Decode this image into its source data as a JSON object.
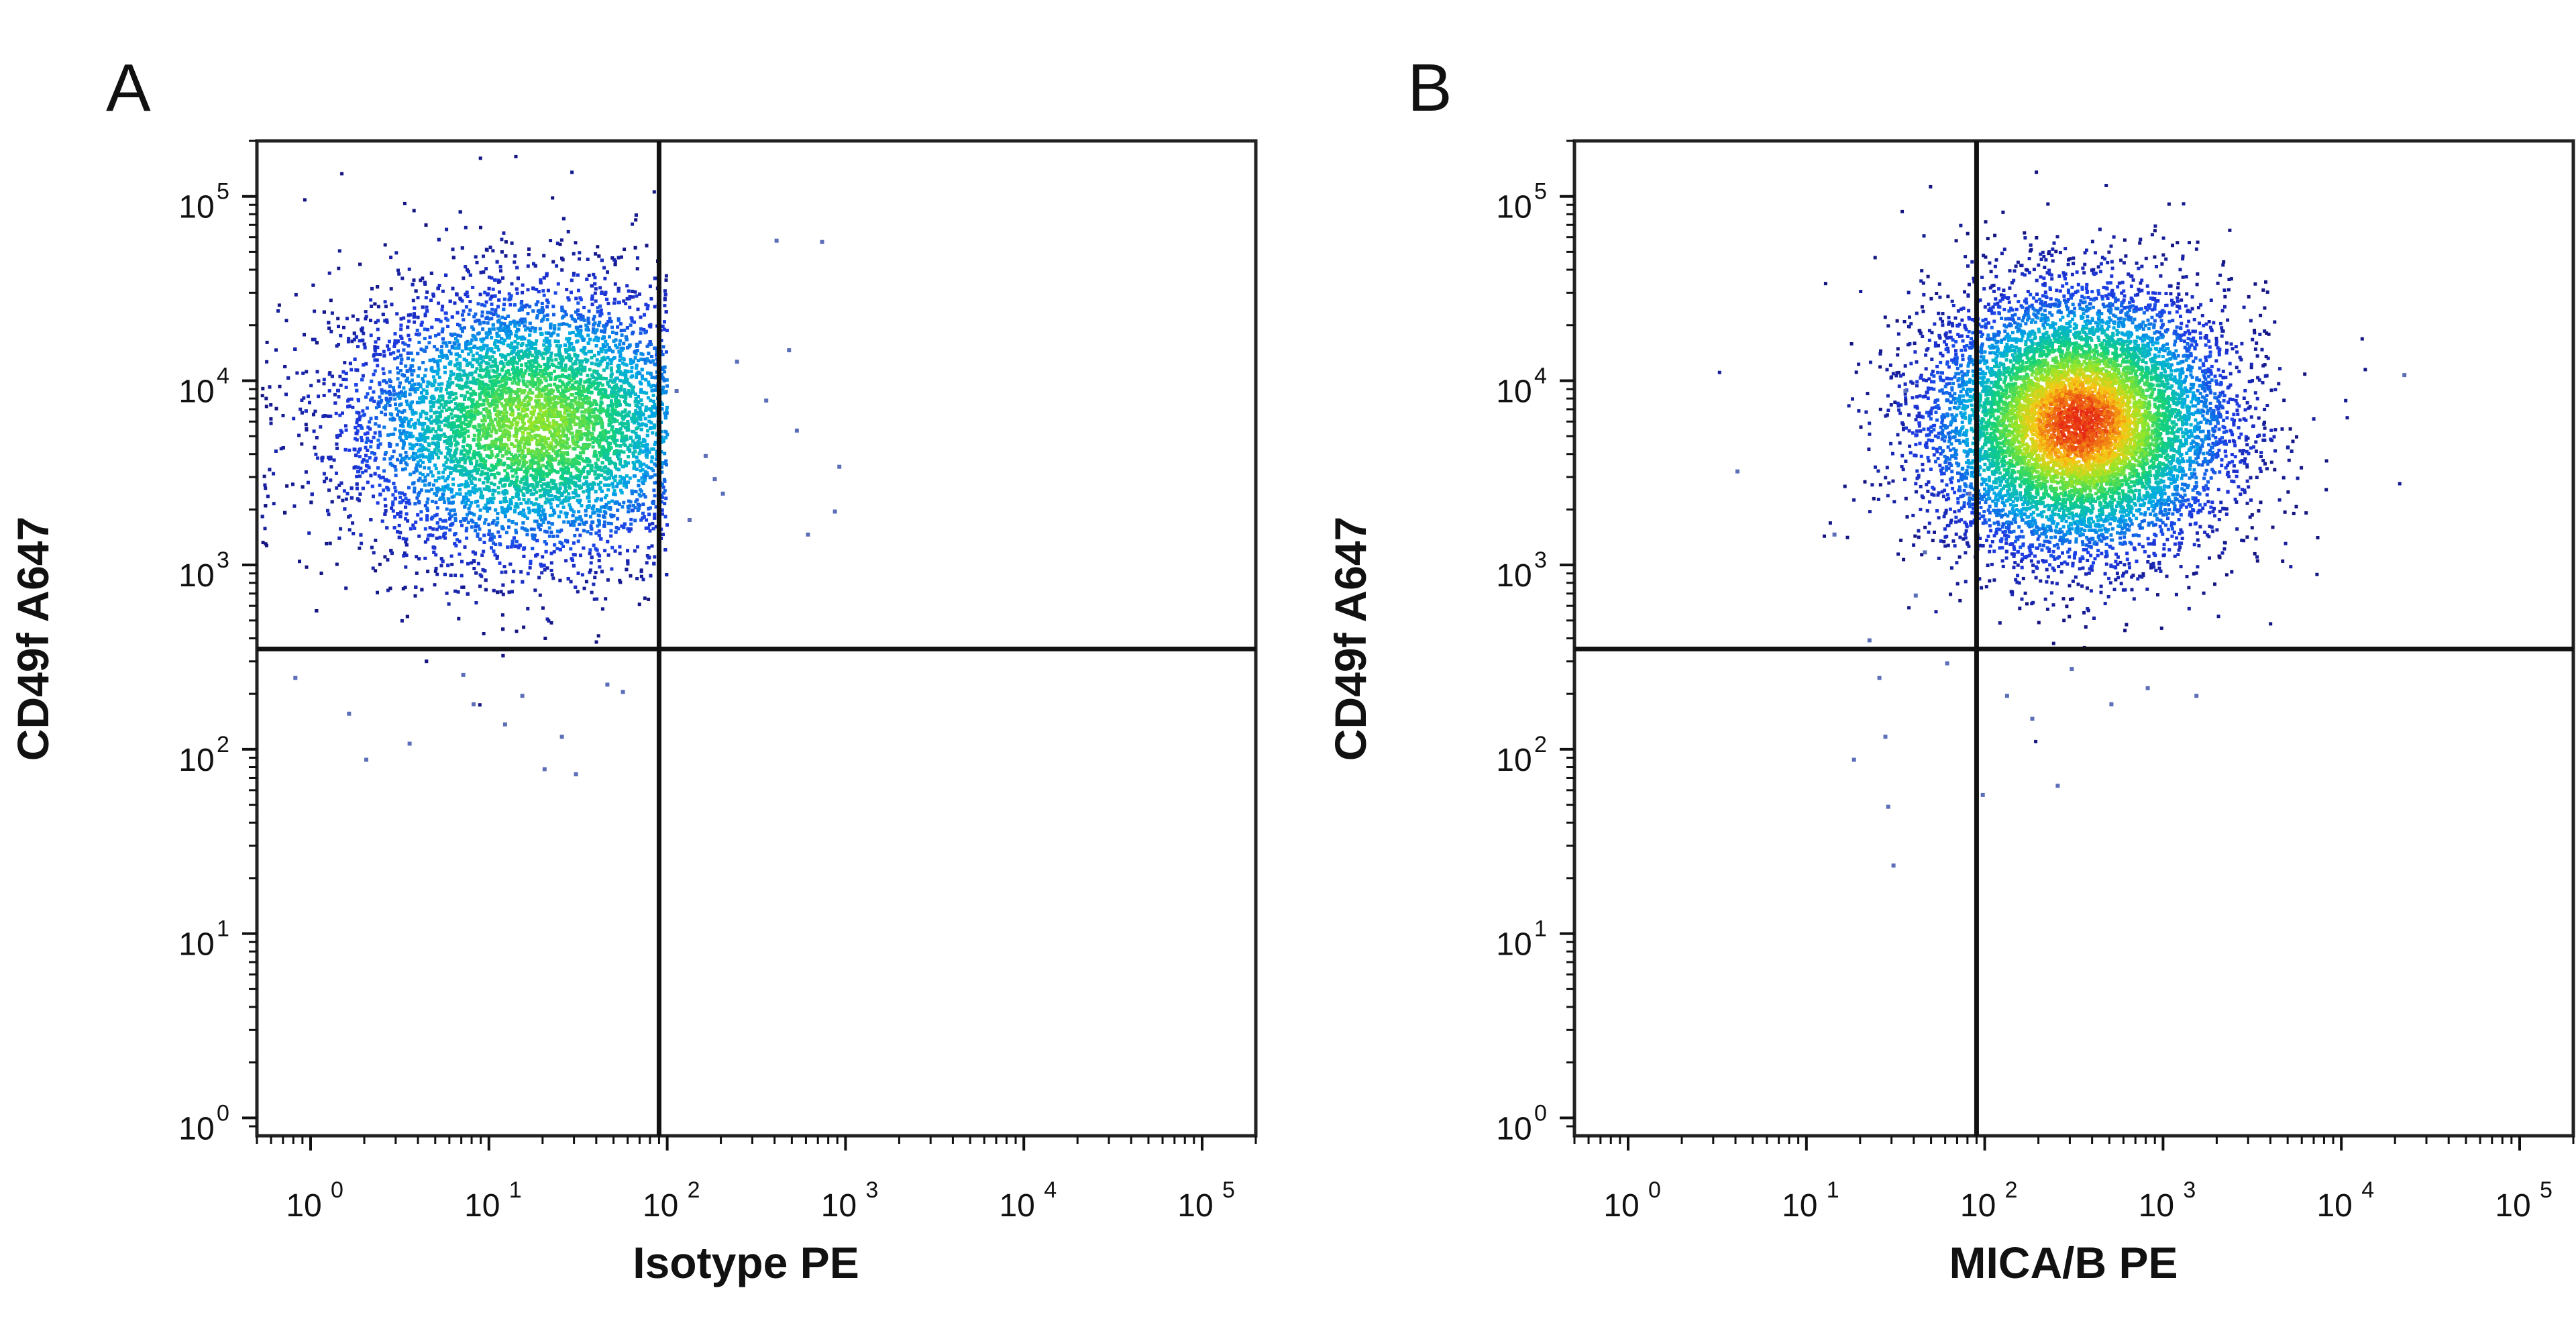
{
  "chart_data": [
    {
      "type": "scatter",
      "panel_label": "A",
      "xlabel": "Isotype PE",
      "ylabel": "CD49f A647",
      "x_scale": "log",
      "y_scale": "log",
      "xlim": [
        0.5,
        200000
      ],
      "ylim": [
        0.8,
        200000
      ],
      "x_ticks": [
        {
          "base": "10",
          "exp": "0"
        },
        {
          "base": "10",
          "exp": "1"
        },
        {
          "base": "10",
          "exp": "2"
        },
        {
          "base": "10",
          "exp": "3"
        },
        {
          "base": "10",
          "exp": "4"
        },
        {
          "base": "10",
          "exp": "5"
        }
      ],
      "y_ticks": [
        {
          "base": "10",
          "exp": "0"
        },
        {
          "base": "10",
          "exp": "1"
        },
        {
          "base": "10",
          "exp": "2"
        },
        {
          "base": "10",
          "exp": "3"
        },
        {
          "base": "10",
          "exp": "4"
        },
        {
          "base": "10",
          "exp": "5"
        }
      ],
      "quadrant_gate": {
        "x": 90,
        "y": 350
      },
      "populations": [
        {
          "center_x": 18,
          "center_y": 6000,
          "spread_x_decades": 0.55,
          "spread_y_decades": 0.38,
          "count": 9000,
          "density_peak": "green-yellow"
        }
      ],
      "sparse_events": [
        {
          "x": 0.8,
          "y": 250
        },
        {
          "x": 1.6,
          "y": 160
        },
        {
          "x": 2.0,
          "y": 90
        },
        {
          "x": 3.5,
          "y": 110
        },
        {
          "x": 7,
          "y": 260
        },
        {
          "x": 8,
          "y": 180
        },
        {
          "x": 12,
          "y": 140
        },
        {
          "x": 15,
          "y": 200
        },
        {
          "x": 20,
          "y": 80
        },
        {
          "x": 25,
          "y": 120
        },
        {
          "x": 30,
          "y": 75
        },
        {
          "x": 45,
          "y": 230
        },
        {
          "x": 55,
          "y": 210
        },
        {
          "x": 110,
          "y": 9000
        },
        {
          "x": 130,
          "y": 1800
        },
        {
          "x": 160,
          "y": 4000
        },
        {
          "x": 180,
          "y": 3000
        },
        {
          "x": 200,
          "y": 2500
        },
        {
          "x": 240,
          "y": 13000
        },
        {
          "x": 350,
          "y": 8000
        },
        {
          "x": 400,
          "y": 59000
        },
        {
          "x": 470,
          "y": 15000
        },
        {
          "x": 520,
          "y": 5500
        },
        {
          "x": 600,
          "y": 1500
        },
        {
          "x": 720,
          "y": 58000
        },
        {
          "x": 850,
          "y": 2000
        },
        {
          "x": 900,
          "y": 3500
        }
      ]
    },
    {
      "type": "scatter",
      "panel_label": "B",
      "xlabel": "MICA/B PE",
      "ylabel": "CD49f A647",
      "x_scale": "log",
      "y_scale": "log",
      "xlim": [
        0.5,
        200000
      ],
      "ylim": [
        0.8,
        200000
      ],
      "x_ticks": [
        {
          "base": "10",
          "exp": "0"
        },
        {
          "base": "10",
          "exp": "1"
        },
        {
          "base": "10",
          "exp": "2"
        },
        {
          "base": "10",
          "exp": "3"
        },
        {
          "base": "10",
          "exp": "4"
        },
        {
          "base": "10",
          "exp": "5"
        }
      ],
      "y_ticks": [
        {
          "base": "10",
          "exp": "0"
        },
        {
          "base": "10",
          "exp": "1"
        },
        {
          "base": "10",
          "exp": "2"
        },
        {
          "base": "10",
          "exp": "3"
        },
        {
          "base": "10",
          "exp": "4"
        },
        {
          "base": "10",
          "exp": "5"
        }
      ],
      "quadrant_gate": {
        "x": 90,
        "y": 350
      },
      "populations": [
        {
          "center_x": 330,
          "center_y": 6000,
          "spread_x_decades": 0.42,
          "spread_y_decades": 0.36,
          "count": 9000,
          "density_peak": "red"
        }
      ],
      "sparse_events": [
        {
          "x": 4,
          "y": 3300
        },
        {
          "x": 14,
          "y": 1500
        },
        {
          "x": 18,
          "y": 90
        },
        {
          "x": 22,
          "y": 400
        },
        {
          "x": 25,
          "y": 250
        },
        {
          "x": 27,
          "y": 120
        },
        {
          "x": 28,
          "y": 50
        },
        {
          "x": 30,
          "y": 24
        },
        {
          "x": 35,
          "y": 9000
        },
        {
          "x": 40,
          "y": 700
        },
        {
          "x": 45,
          "y": 1200
        },
        {
          "x": 60,
          "y": 300
        },
        {
          "x": 80,
          "y": 2500
        },
        {
          "x": 95,
          "y": 58
        },
        {
          "x": 130,
          "y": 200
        },
        {
          "x": 180,
          "y": 150
        },
        {
          "x": 250,
          "y": 65
        },
        {
          "x": 300,
          "y": 280
        },
        {
          "x": 500,
          "y": 180
        },
        {
          "x": 800,
          "y": 220
        },
        {
          "x": 1500,
          "y": 200
        },
        {
          "x": 22000,
          "y": 11000
        }
      ]
    }
  ]
}
